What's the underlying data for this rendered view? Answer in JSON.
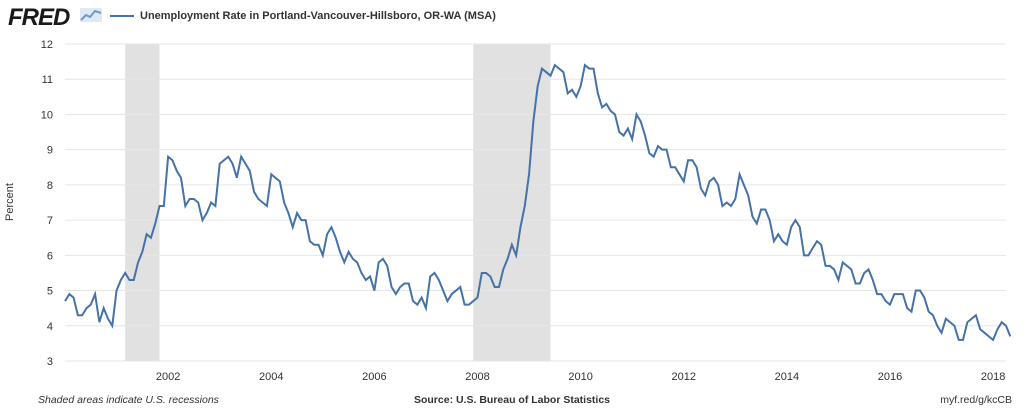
{
  "header": {
    "logo_text": "FRED",
    "logo_icon": "chart-line-icon",
    "legend_label": "Unemployment Rate in Portland-Vancouver-Hillsboro, OR-WA (MSA)"
  },
  "footer": {
    "note": "Shaded areas indicate U.S. recessions",
    "source": "Source: U.S. Bureau of Labor Statistics",
    "url": "myf.red/g/kcCB"
  },
  "colors": {
    "series": "#4572a7",
    "recession": "#e1e1e1",
    "grid": "#e6e6e6"
  },
  "chart_data": {
    "type": "line",
    "title": "",
    "xlabel": "",
    "ylabel": "Percent",
    "xlim": [
      "2000-01",
      "2018-04"
    ],
    "ylim": [
      3,
      12
    ],
    "yticks": [
      3,
      4,
      5,
      6,
      7,
      8,
      9,
      10,
      11,
      12
    ],
    "xticks": [
      "2002",
      "2004",
      "2006",
      "2008",
      "2010",
      "2012",
      "2014",
      "2016",
      "2018"
    ],
    "grid": true,
    "legend_position": "top-left",
    "recessions": [
      {
        "start": "2001-03",
        "end": "2001-11"
      },
      {
        "start": "2007-12",
        "end": "2009-06"
      }
    ],
    "series": [
      {
        "name": "Unemployment Rate in Portland-Vancouver-Hillsboro, OR-WA (MSA)",
        "start": "2000-01",
        "frequency": "monthly",
        "values": [
          4.7,
          4.9,
          4.8,
          4.3,
          4.3,
          4.5,
          4.6,
          4.9,
          4.1,
          4.5,
          4.2,
          4.0,
          5.0,
          5.3,
          5.5,
          5.3,
          5.3,
          5.8,
          6.1,
          6.6,
          6.5,
          6.9,
          7.4,
          7.4,
          8.8,
          8.7,
          8.4,
          8.2,
          7.4,
          7.6,
          7.6,
          7.5,
          7.0,
          7.2,
          7.5,
          7.4,
          8.6,
          8.7,
          8.8,
          8.6,
          8.2,
          8.8,
          8.6,
          8.4,
          7.8,
          7.6,
          7.5,
          7.4,
          8.3,
          8.2,
          8.1,
          7.5,
          7.2,
          6.8,
          7.2,
          7.0,
          7.0,
          6.4,
          6.3,
          6.3,
          6.0,
          6.6,
          6.8,
          6.5,
          6.1,
          5.8,
          6.1,
          5.9,
          5.8,
          5.5,
          5.3,
          5.4,
          5.0,
          5.8,
          5.9,
          5.7,
          5.1,
          4.9,
          5.1,
          5.2,
          5.2,
          4.7,
          4.6,
          4.8,
          4.5,
          5.4,
          5.5,
          5.3,
          5.0,
          4.7,
          4.9,
          5.0,
          5.1,
          4.6,
          4.6,
          4.7,
          4.8,
          5.5,
          5.5,
          5.4,
          5.1,
          5.1,
          5.6,
          5.9,
          6.3,
          6.0,
          6.8,
          7.4,
          8.3,
          9.8,
          10.8,
          11.3,
          11.2,
          11.1,
          11.4,
          11.3,
          11.2,
          10.6,
          10.7,
          10.5,
          10.8,
          11.4,
          11.3,
          11.3,
          10.6,
          10.2,
          10.3,
          10.1,
          10.0,
          9.5,
          9.4,
          9.6,
          9.3,
          10.0,
          9.8,
          9.4,
          8.9,
          8.8,
          9.1,
          9.0,
          9.0,
          8.5,
          8.5,
          8.3,
          8.1,
          8.7,
          8.7,
          8.5,
          7.9,
          7.7,
          8.1,
          8.2,
          8.0,
          7.4,
          7.5,
          7.4,
          7.6,
          8.3,
          8.0,
          7.7,
          7.1,
          6.9,
          7.3,
          7.3,
          7.0,
          6.4,
          6.6,
          6.4,
          6.3,
          6.8,
          7.0,
          6.8,
          6.0,
          6.0,
          6.2,
          6.4,
          6.3,
          5.7,
          5.7,
          5.6,
          5.3,
          5.8,
          5.7,
          5.6,
          5.2,
          5.2,
          5.5,
          5.6,
          5.3,
          4.9,
          4.9,
          4.7,
          4.6,
          4.9,
          4.9,
          4.9,
          4.5,
          4.4,
          5.0,
          5.0,
          4.8,
          4.4,
          4.3,
          4.0,
          3.8,
          4.2,
          4.1,
          4.0,
          3.6,
          3.6,
          4.1,
          4.2,
          4.3,
          3.9,
          3.8,
          3.7,
          3.6,
          3.9,
          4.1,
          4.0,
          3.7
        ]
      }
    ]
  }
}
